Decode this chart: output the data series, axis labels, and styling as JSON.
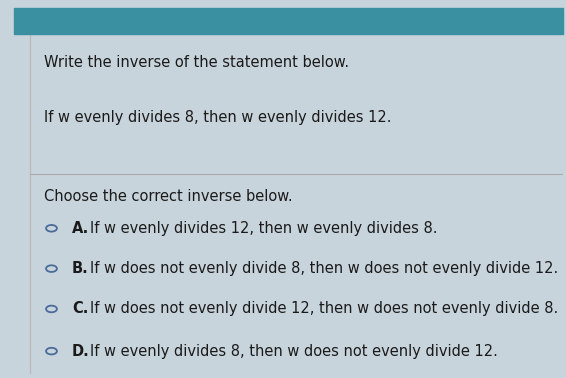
{
  "outer_bg": "#c8d4dc",
  "panel_bg": "#f0f0f0",
  "top_bar_color": "#3a8fa0",
  "top_bar_height": 0.072,
  "left_border_color": "#bbbbbb",
  "divider_color": "#aaaaaa",
  "title_line1": "Write the inverse of the statement below.",
  "title_line2": "If w evenly divides 8, then w evenly divides 12.",
  "prompt": "Choose the correct inverse below.",
  "options": [
    {
      "label": "A.",
      "text": "  If w evenly divides 12, then w evenly divides 8."
    },
    {
      "label": "B.",
      "text": "  If w does not evenly divide 8, then w does not evenly divide 12."
    },
    {
      "label": "C.",
      "text": "  If w does not evenly divide 12, then w does not evenly divide 8."
    },
    {
      "label": "D.",
      "text": "  If w evenly divides 8, then w does not evenly divide 12."
    }
  ],
  "text_color": "#1a1a1a",
  "circle_edge_color": "#4a6a9a",
  "font_size_main": 10.5,
  "font_size_options": 10.5
}
